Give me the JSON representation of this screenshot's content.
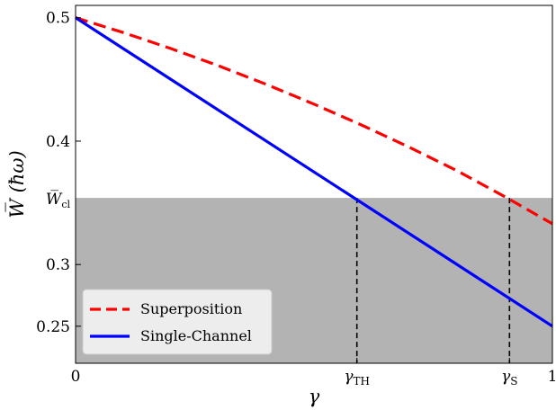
{
  "chart_data": {
    "type": "line",
    "xlabel": "γ",
    "ylabel": "W̅ (ħω)",
    "xlim": [
      0,
      1
    ],
    "ylim": [
      0.22,
      0.51
    ],
    "grid": false,
    "legend_position": "bottom-left",
    "x_ticks": [
      {
        "value": 0,
        "label": "0"
      },
      {
        "value": 0.59,
        "label": "γ",
        "sub": "TH"
      },
      {
        "value": 0.91,
        "label": "γ",
        "sub": "S"
      },
      {
        "value": 1,
        "label": "1"
      }
    ],
    "y_ticks": [
      {
        "value": 0.5,
        "label": "0.5"
      },
      {
        "value": 0.4,
        "label": "0.4"
      },
      {
        "value": 0.3,
        "label": "0.3"
      },
      {
        "value": 0.25,
        "label": "0.25"
      }
    ],
    "threshold": {
      "value": 0.354,
      "label": "W̅",
      "sub": "cl",
      "shaded": "below",
      "color": "#b3b3b3"
    },
    "markers": [
      0.59,
      0.91
    ],
    "series": [
      {
        "name": "Superposition",
        "color": "#ff0000",
        "style": "dashed",
        "x": [
          0,
          0.1,
          0.2,
          0.3,
          0.4,
          0.5,
          0.6,
          0.7,
          0.8,
          0.9,
          1.0
        ],
        "y": [
          0.5,
          0.488,
          0.475,
          0.461,
          0.446,
          0.43,
          0.413,
          0.395,
          0.376,
          0.355,
          0.333
        ]
      },
      {
        "name": "Single-Channel",
        "color": "#0000ff",
        "style": "solid",
        "x": [
          0,
          1
        ],
        "y": [
          0.5,
          0.25
        ]
      }
    ]
  }
}
